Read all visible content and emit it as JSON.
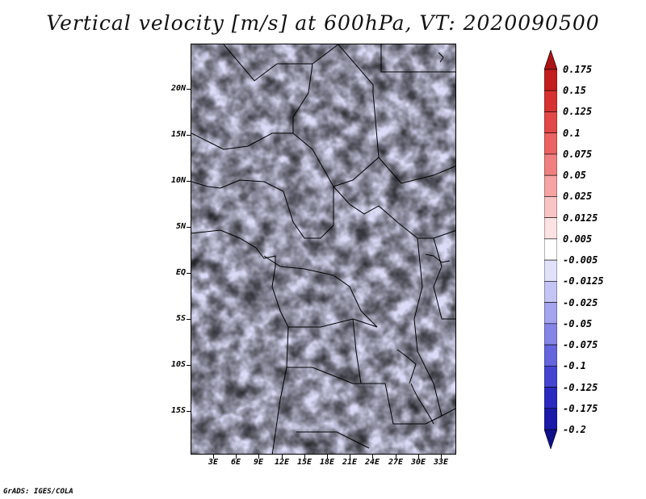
{
  "title": "Vertical velocity [m/s] at 600hPa, VT: 2020090500",
  "footer": "GrADS: IGES/COLA",
  "map": {
    "lat_labels": [
      "20N",
      "15N",
      "10N",
      "5N",
      "EQ",
      "5S",
      "10S",
      "15S"
    ],
    "lon_labels": [
      "3E",
      "6E",
      "9E",
      "12E",
      "15E",
      "18E",
      "21E",
      "24E",
      "27E",
      "30E",
      "33E"
    ]
  },
  "colorbar": {
    "labels": [
      "0.175",
      "0.15",
      "0.125",
      "0.1",
      "0.075",
      "0.05",
      "0.025",
      "0.0125",
      "0.005",
      "-0.005",
      "-0.0125",
      "-0.025",
      "-0.05",
      "-0.075",
      "-0.1",
      "-0.125",
      "-0.175",
      "-0.2"
    ],
    "colors": [
      "#aa1414",
      "#c21e1e",
      "#d73232",
      "#e24848",
      "#ea6262",
      "#f08080",
      "#f5a3a3",
      "#f9c4c4",
      "#fce2e2",
      "#ffffff",
      "#e1e1fa",
      "#c4c4f5",
      "#a4a4ef",
      "#8585e8",
      "#6565de",
      "#4545d2",
      "#2a2ac0",
      "#1a1aa8",
      "#10108a"
    ]
  }
}
